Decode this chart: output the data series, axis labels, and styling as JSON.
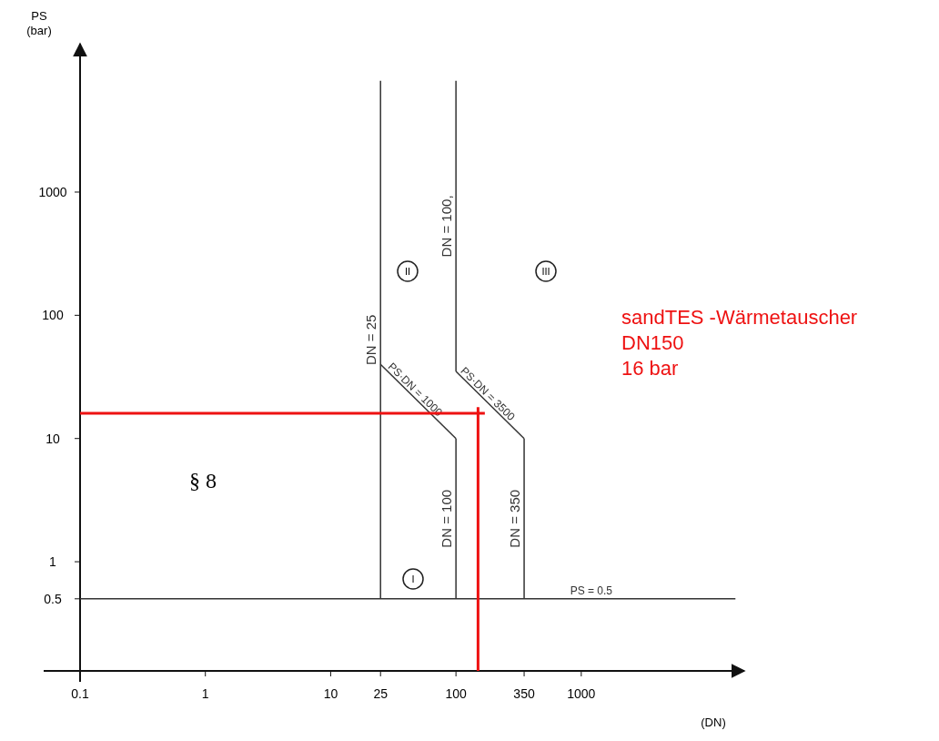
{
  "chart_data": {
    "type": "line",
    "xlabel": "(DN)",
    "ylabel": "PS\n(bar)",
    "log": "xy",
    "grid": false,
    "line_style": "solid",
    "xlim": [
      0.1,
      20000
    ],
    "ylim": [
      0.13,
      16000
    ],
    "xticks": [
      0.1,
      1,
      10,
      25,
      100,
      350,
      1000
    ],
    "yticks": [
      0.5,
      1,
      10,
      100,
      1000
    ],
    "series": [
      {
        "name": "DN = 25",
        "color": "#333333",
        "x": [
          25,
          25
        ],
        "values": [
          0.5,
          8000
        ]
      },
      {
        "name": "PS·DN = 1000",
        "color": "#333333",
        "x": [
          25,
          100
        ],
        "values": [
          40,
          10
        ]
      },
      {
        "name": "DN = 100",
        "color": "#333333",
        "x": [
          100,
          100
        ],
        "values": [
          10,
          0.5
        ]
      },
      {
        "name": "DN = 100,",
        "color": "#333333",
        "x": [
          100,
          100
        ],
        "values": [
          35,
          8000
        ]
      },
      {
        "name": "PS·DN = 3500",
        "color": "#333333",
        "x": [
          100,
          350
        ],
        "values": [
          35,
          10
        ]
      },
      {
        "name": "DN = 350",
        "color": "#333333",
        "x": [
          350,
          350
        ],
        "values": [
          10,
          0.5
        ]
      },
      {
        "name": "PS = 0.5",
        "color": "#333333",
        "x": [
          0.1,
          17000
        ],
        "values": [
          0.5,
          0.5
        ]
      },
      {
        "color": "#ee1111",
        "x": [
          0.1,
          170
        ],
        "values": [
          16,
          16
        ]
      },
      {
        "color": "#ee1111",
        "x": [
          150,
          150
        ],
        "values": [
          0.13,
          18
        ]
      }
    ],
    "annotations": [
      "§ 8",
      "I",
      "II",
      "III",
      "sandTES -Wärmetauscher\nDN150\n16 bar"
    ]
  }
}
